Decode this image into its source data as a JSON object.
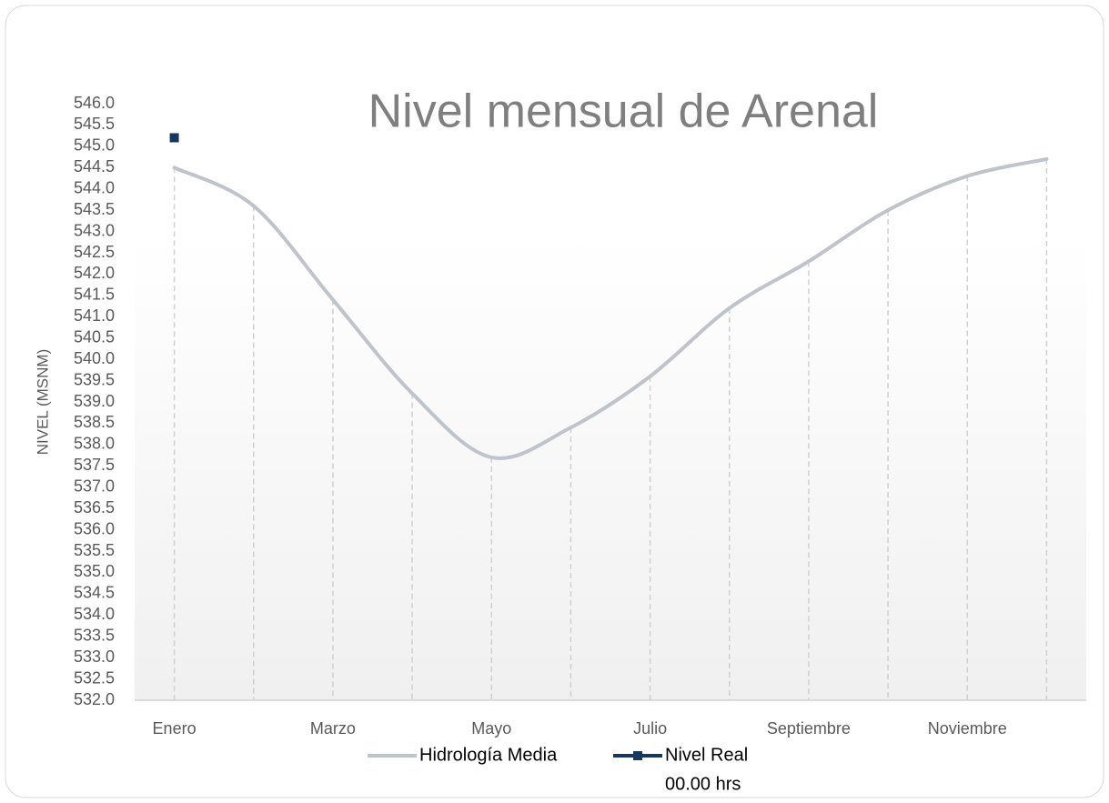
{
  "chart_data": {
    "type": "line",
    "title": "Nivel mensual de Arenal",
    "y_label": "NIVEL (MSNM)",
    "categories": [
      "Enero",
      null,
      "Marzo",
      null,
      "Mayo",
      null,
      "Julio",
      null,
      "Septiembre",
      null,
      "Noviembre",
      null
    ],
    "series": [
      {
        "name": "Hidrología Media",
        "color": "#bfc3cb",
        "smooth": true,
        "values": [
          544.5,
          543.6,
          541.4,
          539.2,
          537.7,
          538.4,
          539.6,
          541.2,
          542.3,
          543.5,
          544.3,
          544.7
        ]
      },
      {
        "name": "Nivel Real",
        "time_label": "00.00 hrs",
        "color": "#17375e",
        "marker": "square",
        "values": [
          545.2,
          null,
          null,
          null,
          null,
          null,
          null,
          null,
          null,
          null,
          null,
          null
        ]
      }
    ],
    "ylim": [
      532,
      546
    ],
    "yticks": [
      {
        "value": 532,
        "label": "532.0"
      },
      532.5,
      {
        "value": 533,
        "label": "533.0"
      },
      533.5,
      {
        "value": 534,
        "label": "534.0"
      },
      534.5,
      {
        "value": 535,
        "label": "535.0"
      },
      535.5,
      {
        "value": 536,
        "label": "536.0"
      },
      536.5,
      {
        "value": 537,
        "label": "537.0"
      },
      537.5,
      {
        "value": 538,
        "label": "538.0"
      },
      538.5,
      {
        "value": 539,
        "label": "539.0"
      },
      539.5,
      {
        "value": 540,
        "label": "540.0"
      },
      540.5,
      {
        "value": 541,
        "label": "541.0"
      },
      541.5,
      {
        "value": 542,
        "label": "542.0"
      },
      542.5,
      {
        "value": 543,
        "label": "543.0"
      },
      543.5,
      {
        "value": 544,
        "label": "544.0"
      },
      544.5,
      {
        "value": 545,
        "label": "545.0"
      },
      545.5,
      {
        "value": 546,
        "label": "546.0"
      }
    ],
    "drop_lines": true,
    "legend": "bottom"
  }
}
